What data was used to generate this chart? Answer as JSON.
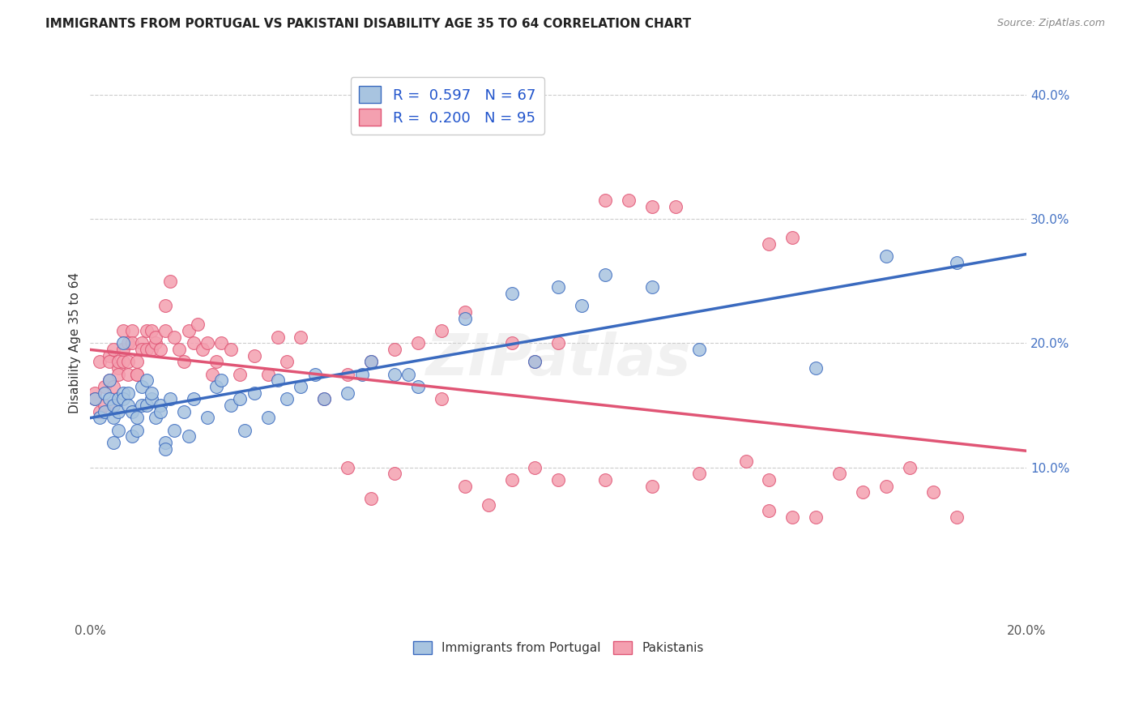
{
  "title": "IMMIGRANTS FROM PORTUGAL VS PAKISTANI DISABILITY AGE 35 TO 64 CORRELATION CHART",
  "source": "Source: ZipAtlas.com",
  "ylabel": "Disability Age 35 to 64",
  "xlim": [
    0.0,
    0.2
  ],
  "ylim": [
    -0.02,
    0.42
  ],
  "xticks": [
    0.0,
    0.04,
    0.08,
    0.12,
    0.16,
    0.2
  ],
  "xtick_labels": [
    "0.0%",
    "",
    "",
    "",
    "",
    "20.0%"
  ],
  "yticks_right": [
    0.1,
    0.2,
    0.3,
    0.4
  ],
  "ytick_labels_right": [
    "10.0%",
    "20.0%",
    "30.0%",
    "40.0%"
  ],
  "legend_r1": "R =  0.597   N = 67",
  "legend_r2": "R =  0.200   N = 95",
  "legend_color1": "#a8c4e0",
  "legend_color2": "#f4a0b0",
  "dot_color_blue": "#a8c4e0",
  "dot_color_pink": "#f4a0b0",
  "line_color_blue": "#3a6abf",
  "line_color_pink": "#e05575",
  "watermark": "ZIPatlas",
  "background_color": "#ffffff",
  "grid_color": "#cccccc",
  "series1_label": "Immigrants from Portugal",
  "series2_label": "Pakistanis",
  "blue_x": [
    0.001,
    0.002,
    0.003,
    0.003,
    0.004,
    0.004,
    0.005,
    0.005,
    0.005,
    0.006,
    0.006,
    0.006,
    0.007,
    0.007,
    0.007,
    0.008,
    0.008,
    0.009,
    0.009,
    0.01,
    0.01,
    0.011,
    0.011,
    0.012,
    0.012,
    0.013,
    0.013,
    0.014,
    0.015,
    0.015,
    0.016,
    0.016,
    0.017,
    0.018,
    0.02,
    0.021,
    0.022,
    0.025,
    0.027,
    0.028,
    0.03,
    0.032,
    0.033,
    0.035,
    0.038,
    0.04,
    0.042,
    0.045,
    0.048,
    0.05,
    0.055,
    0.058,
    0.06,
    0.065,
    0.068,
    0.07,
    0.08,
    0.09,
    0.095,
    0.1,
    0.105,
    0.11,
    0.12,
    0.13,
    0.155,
    0.17,
    0.185
  ],
  "blue_y": [
    0.155,
    0.14,
    0.145,
    0.16,
    0.17,
    0.155,
    0.14,
    0.15,
    0.12,
    0.145,
    0.155,
    0.13,
    0.16,
    0.155,
    0.2,
    0.16,
    0.15,
    0.125,
    0.145,
    0.14,
    0.13,
    0.15,
    0.165,
    0.17,
    0.15,
    0.155,
    0.16,
    0.14,
    0.15,
    0.145,
    0.12,
    0.115,
    0.155,
    0.13,
    0.145,
    0.125,
    0.155,
    0.14,
    0.165,
    0.17,
    0.15,
    0.155,
    0.13,
    0.16,
    0.14,
    0.17,
    0.155,
    0.165,
    0.175,
    0.155,
    0.16,
    0.175,
    0.185,
    0.175,
    0.175,
    0.165,
    0.22,
    0.24,
    0.185,
    0.245,
    0.23,
    0.255,
    0.245,
    0.195,
    0.18,
    0.27,
    0.265
  ],
  "pink_x": [
    0.001,
    0.001,
    0.002,
    0.002,
    0.003,
    0.003,
    0.004,
    0.004,
    0.004,
    0.005,
    0.005,
    0.005,
    0.006,
    0.006,
    0.006,
    0.007,
    0.007,
    0.007,
    0.008,
    0.008,
    0.008,
    0.009,
    0.009,
    0.01,
    0.01,
    0.01,
    0.011,
    0.011,
    0.012,
    0.012,
    0.013,
    0.013,
    0.014,
    0.014,
    0.015,
    0.016,
    0.016,
    0.017,
    0.018,
    0.019,
    0.02,
    0.021,
    0.022,
    0.023,
    0.024,
    0.025,
    0.026,
    0.027,
    0.028,
    0.03,
    0.032,
    0.035,
    0.038,
    0.04,
    0.042,
    0.045,
    0.05,
    0.055,
    0.06,
    0.065,
    0.07,
    0.075,
    0.08,
    0.09,
    0.095,
    0.1,
    0.11,
    0.115,
    0.12,
    0.125,
    0.13,
    0.14,
    0.145,
    0.15,
    0.155,
    0.16,
    0.165,
    0.17,
    0.175,
    0.18,
    0.185,
    0.145,
    0.15,
    0.11,
    0.12,
    0.1,
    0.055,
    0.06,
    0.065,
    0.075,
    0.08,
    0.085,
    0.09,
    0.095,
    0.145
  ],
  "pink_y": [
    0.16,
    0.155,
    0.185,
    0.145,
    0.165,
    0.15,
    0.19,
    0.185,
    0.17,
    0.165,
    0.195,
    0.15,
    0.18,
    0.185,
    0.175,
    0.21,
    0.185,
    0.195,
    0.175,
    0.2,
    0.185,
    0.21,
    0.2,
    0.185,
    0.175,
    0.175,
    0.2,
    0.195,
    0.195,
    0.21,
    0.195,
    0.21,
    0.2,
    0.205,
    0.195,
    0.21,
    0.23,
    0.25,
    0.205,
    0.195,
    0.185,
    0.21,
    0.2,
    0.215,
    0.195,
    0.2,
    0.175,
    0.185,
    0.2,
    0.195,
    0.175,
    0.19,
    0.175,
    0.205,
    0.185,
    0.205,
    0.155,
    0.175,
    0.185,
    0.195,
    0.2,
    0.21,
    0.225,
    0.2,
    0.185,
    0.2,
    0.315,
    0.315,
    0.31,
    0.31,
    0.095,
    0.105,
    0.065,
    0.06,
    0.06,
    0.095,
    0.08,
    0.085,
    0.1,
    0.08,
    0.06,
    0.28,
    0.285,
    0.09,
    0.085,
    0.09,
    0.1,
    0.075,
    0.095,
    0.155,
    0.085,
    0.07,
    0.09,
    0.1,
    0.09
  ]
}
